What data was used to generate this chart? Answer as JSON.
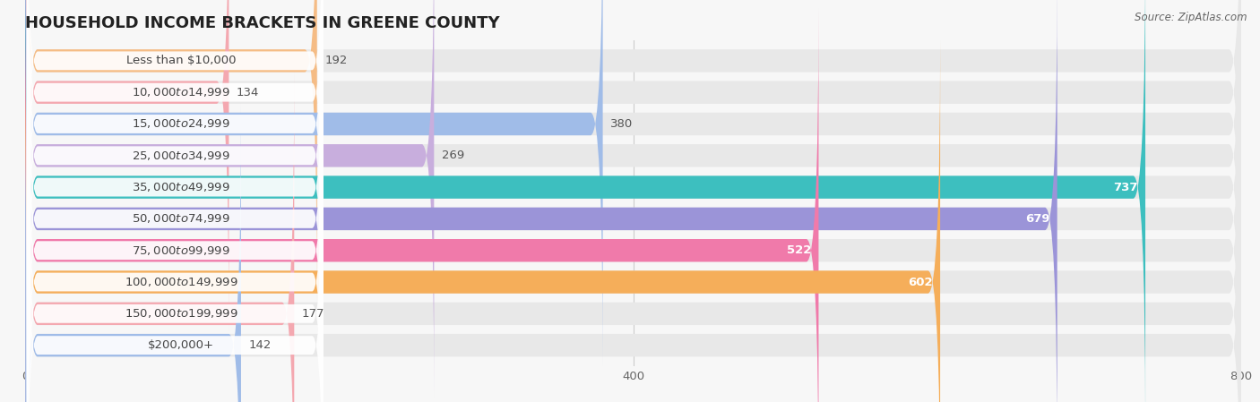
{
  "title": "HOUSEHOLD INCOME BRACKETS IN GREENE COUNTY",
  "source": "Source: ZipAtlas.com",
  "categories": [
    "Less than $10,000",
    "$10,000 to $14,999",
    "$15,000 to $24,999",
    "$25,000 to $34,999",
    "$35,000 to $49,999",
    "$50,000 to $74,999",
    "$75,000 to $99,999",
    "$100,000 to $149,999",
    "$150,000 to $199,999",
    "$200,000+"
  ],
  "values": [
    192,
    134,
    380,
    269,
    737,
    679,
    522,
    602,
    177,
    142
  ],
  "bar_colors": [
    "#F5BC85",
    "#F4A8B0",
    "#A0BCE8",
    "#C8AEDD",
    "#3DBFBF",
    "#9B94D8",
    "#F07AAA",
    "#F5AE5A",
    "#F4A8B0",
    "#A0BCE8"
  ],
  "label_colors": [
    "#555555",
    "#555555",
    "#555555",
    "#555555",
    "#ffffff",
    "#ffffff",
    "#ffffff",
    "#ffffff",
    "#555555",
    "#555555"
  ],
  "data_min": 0,
  "data_max": 800,
  "xticks": [
    0,
    400,
    800
  ],
  "background_color": "#f7f7f7",
  "bar_bg_color": "#e8e8e8",
  "title_fontsize": 13,
  "source_fontsize": 8.5,
  "label_fontsize": 9.5,
  "category_fontsize": 9.5
}
